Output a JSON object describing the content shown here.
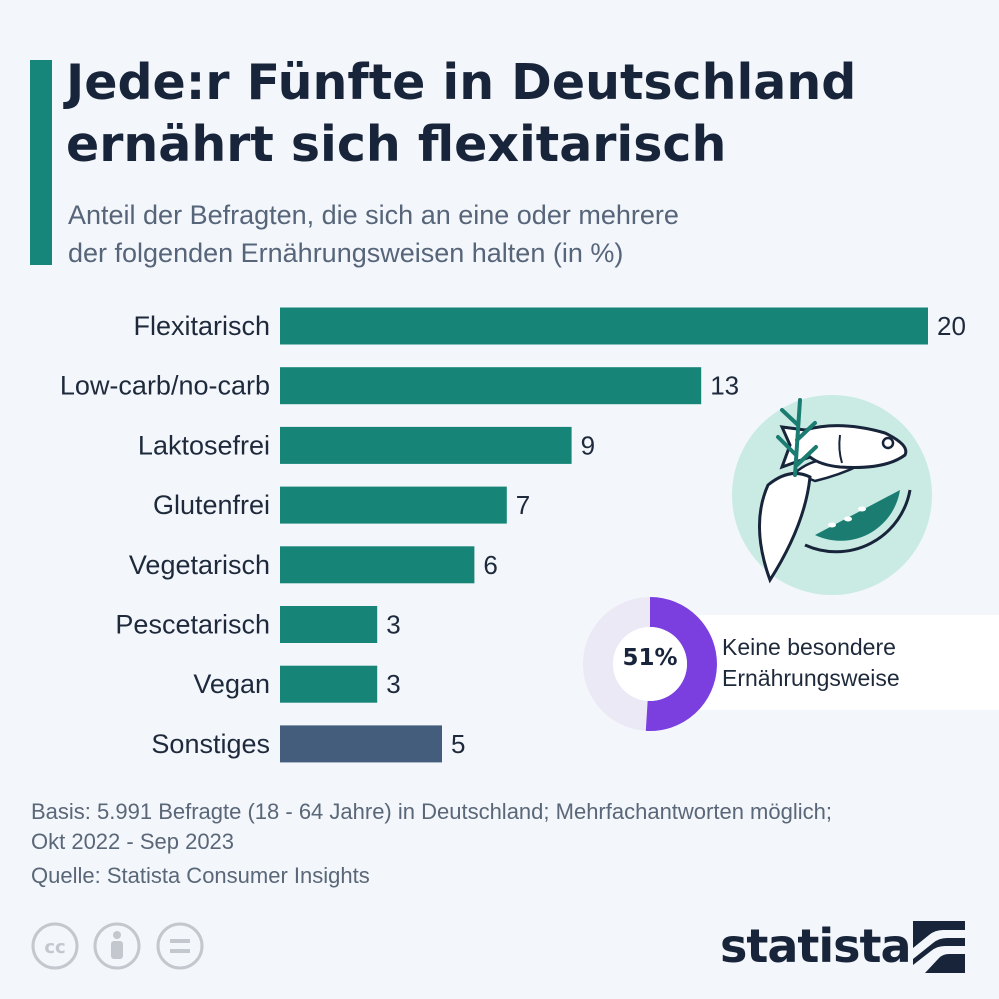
{
  "header": {
    "title_line1": "Jede:r Fünfte in Deutschland",
    "title_line2": "ernährt sich flexitarisch",
    "subtitle_line1": "Anteil der Befragten, die sich an eine oder mehrere",
    "subtitle_line2": "der folgenden Ernährungsweisen halten (in %)"
  },
  "chart_data": {
    "type": "bar",
    "orientation": "horizontal",
    "title": "Jede:r Fünfte in Deutschland ernährt sich flexitarisch",
    "subtitle": "Anteil der Befragten, die sich an eine oder mehrere der folgenden Ernährungsweisen halten (in %)",
    "categories": [
      "Flexitarisch",
      "Low-carb/no-carb",
      "Laktosefrei",
      "Glutenfrei",
      "Vegetarisch",
      "Pescetarisch",
      "Vegan",
      "Sonstiges"
    ],
    "values": [
      20,
      13,
      9,
      7,
      6,
      3,
      3,
      5
    ],
    "colors": [
      "#168578",
      "#168578",
      "#168578",
      "#168578",
      "#168578",
      "#168578",
      "#168578",
      "#455d7c"
    ],
    "xlim": [
      0,
      20
    ],
    "grid": false
  },
  "callout": {
    "percent": 51,
    "percent_label": "51%",
    "text_line1": "Keine besondere",
    "text_line2": "Ernährungsweise",
    "color": "#7b3fe0",
    "track_color": "#ece9f7"
  },
  "footer": {
    "basis_line1": "Basis: 5.991 Befragte (18 - 64 Jahre) in Deutschland; Mehrfachantworten möglich;",
    "basis_line2": "Okt 2022 - Sep 2023",
    "source": "Quelle: Statista Consumer Insights"
  },
  "license_icons": [
    "cc-icon",
    "attribution-icon",
    "no-derivatives-icon"
  ],
  "brand": {
    "name": "statista"
  },
  "illustration": {
    "icon": "food-illustration-icon",
    "bg_color": "#c9ebe4"
  },
  "colors": {
    "accent": "#16867a",
    "bar": "#168578",
    "other_bar": "#455d7c",
    "title": "#17243a",
    "background": "#f3f6fa"
  }
}
